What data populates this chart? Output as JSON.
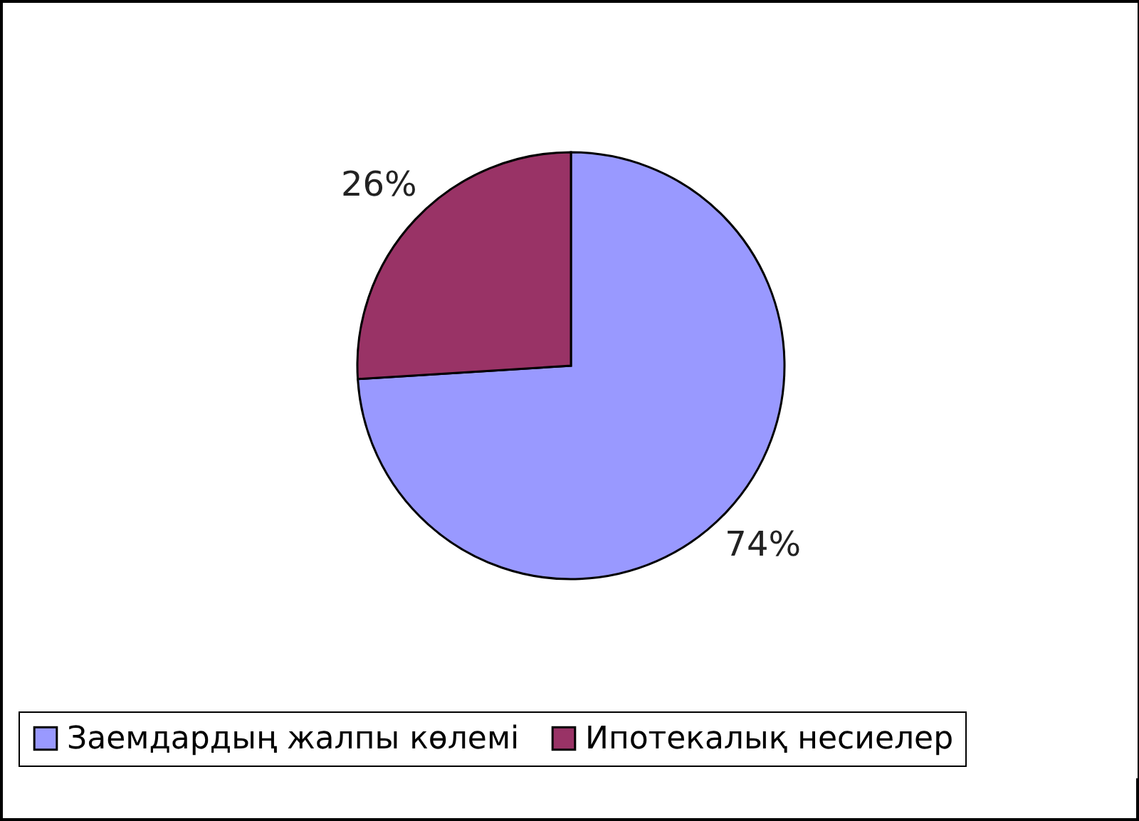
{
  "chart_data": {
    "type": "pie",
    "categories": [
      "Заемдардың жалпы көлемі",
      "Ипотекалық несиелер"
    ],
    "values": [
      74,
      26
    ],
    "colors": [
      "#9999ff",
      "#993366"
    ],
    "value_labels": [
      "74%",
      "26%"
    ],
    "legend": "bottom"
  }
}
